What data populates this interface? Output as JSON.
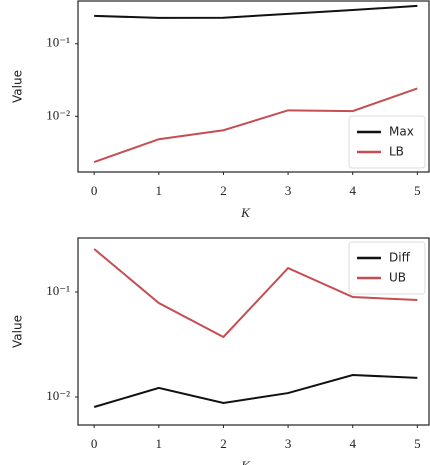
{
  "chart_data": [
    {
      "type": "line",
      "log_y": true,
      "xlabel": "K",
      "ylabel": "Value",
      "legend": "lower right",
      "x": [
        0,
        1,
        2,
        3,
        4,
        5
      ],
      "series": [
        {
          "name": "Max",
          "color": "#111111",
          "values": [
            0.242,
            0.227,
            0.228,
            0.258,
            0.292,
            0.332
          ]
        },
        {
          "name": "LB",
          "color": "#c44e52",
          "values": [
            0.00234,
            0.00484,
            0.00643,
            0.0121,
            0.0118,
            0.0242
          ]
        }
      ],
      "xlim": [
        -0.25,
        5.18
      ],
      "xticks": [
        0,
        1,
        2,
        3,
        4,
        5
      ],
      "ylim": [
        0.00171,
        0.388
      ],
      "yticks": [
        {
          "value": 0.1,
          "label": "10⁻¹"
        },
        {
          "value": 0.01,
          "label": "10⁻²"
        }
      ]
    },
    {
      "type": "line",
      "log_y": true,
      "xlabel": "K",
      "ylabel": "Value",
      "legend": "upper right",
      "x": [
        0,
        1,
        2,
        3,
        4,
        5
      ],
      "series": [
        {
          "name": "Diff",
          "color": "#111111",
          "values": [
            0.00803,
            0.0122,
            0.00877,
            0.0109,
            0.0162,
            0.0152
          ]
        },
        {
          "name": "UB",
          "color": "#c44e52",
          "values": [
            0.257,
            0.0786,
            0.0373,
            0.169,
            0.0896,
            0.0839
          ]
        }
      ],
      "xlim": [
        -0.25,
        5.18
      ],
      "xticks": [
        0,
        1,
        2,
        3,
        4,
        5
      ],
      "ylim": [
        0.00541,
        0.327
      ],
      "yticks": [
        {
          "value": 0.1,
          "label": "10⁻¹"
        },
        {
          "value": 0.01,
          "label": "10⁻²"
        }
      ]
    }
  ]
}
